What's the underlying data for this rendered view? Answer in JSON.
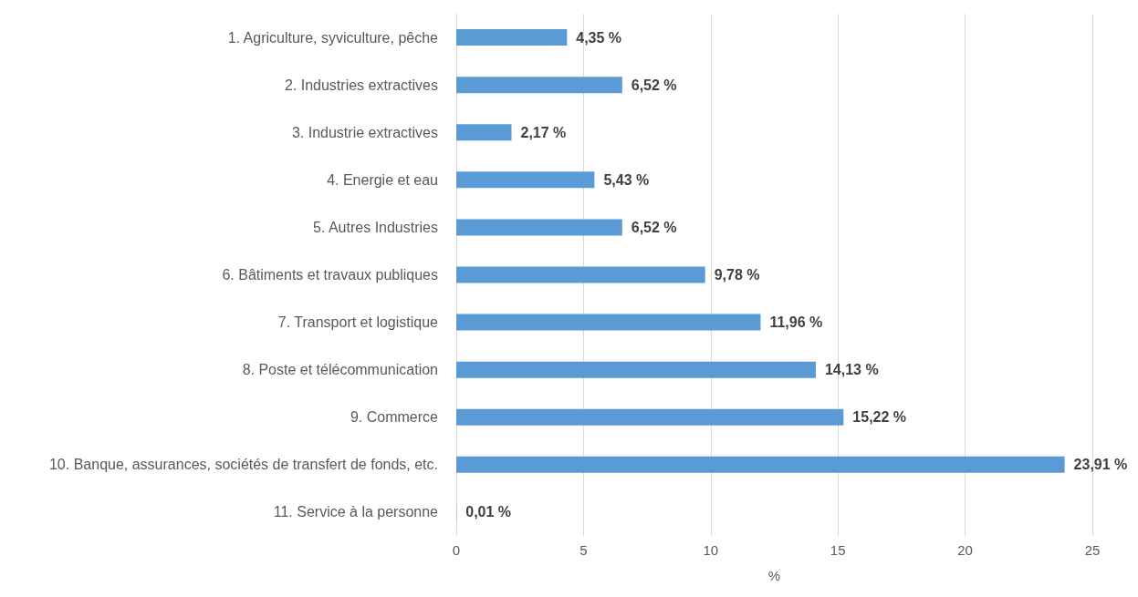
{
  "chart_data": {
    "type": "bar",
    "orientation": "horizontal",
    "xlabel": "%",
    "categories": [
      "1. Agriculture, syviculture, pêche",
      "2. Industries extractives",
      "3. Industrie extractives",
      "4. Energie et eau",
      "5. Autres Industries",
      "6. Bâtiments et travaux publiques",
      "7. Transport et logistique",
      "8. Poste et télécommunication",
      "9. Commerce",
      "10. Banque, assurances, sociétés de transfert de fonds, etc.",
      "11. Service à la personne"
    ],
    "values": [
      4.35,
      6.52,
      2.17,
      5.43,
      6.52,
      9.78,
      11.96,
      14.13,
      15.22,
      23.91,
      0.01
    ],
    "value_labels": [
      "4,35 %",
      "6,52 %",
      "2,17 %",
      "5,43 %",
      "6,52 %",
      "9,78 %",
      "11,96 %",
      "14,13 %",
      "15,22 %",
      "23,91 %",
      "0,01 %"
    ],
    "color": "#5b9bd5",
    "xlim": [
      0,
      25
    ],
    "xticks": [
      0,
      5,
      10,
      15,
      20,
      25
    ],
    "grid": "x"
  }
}
